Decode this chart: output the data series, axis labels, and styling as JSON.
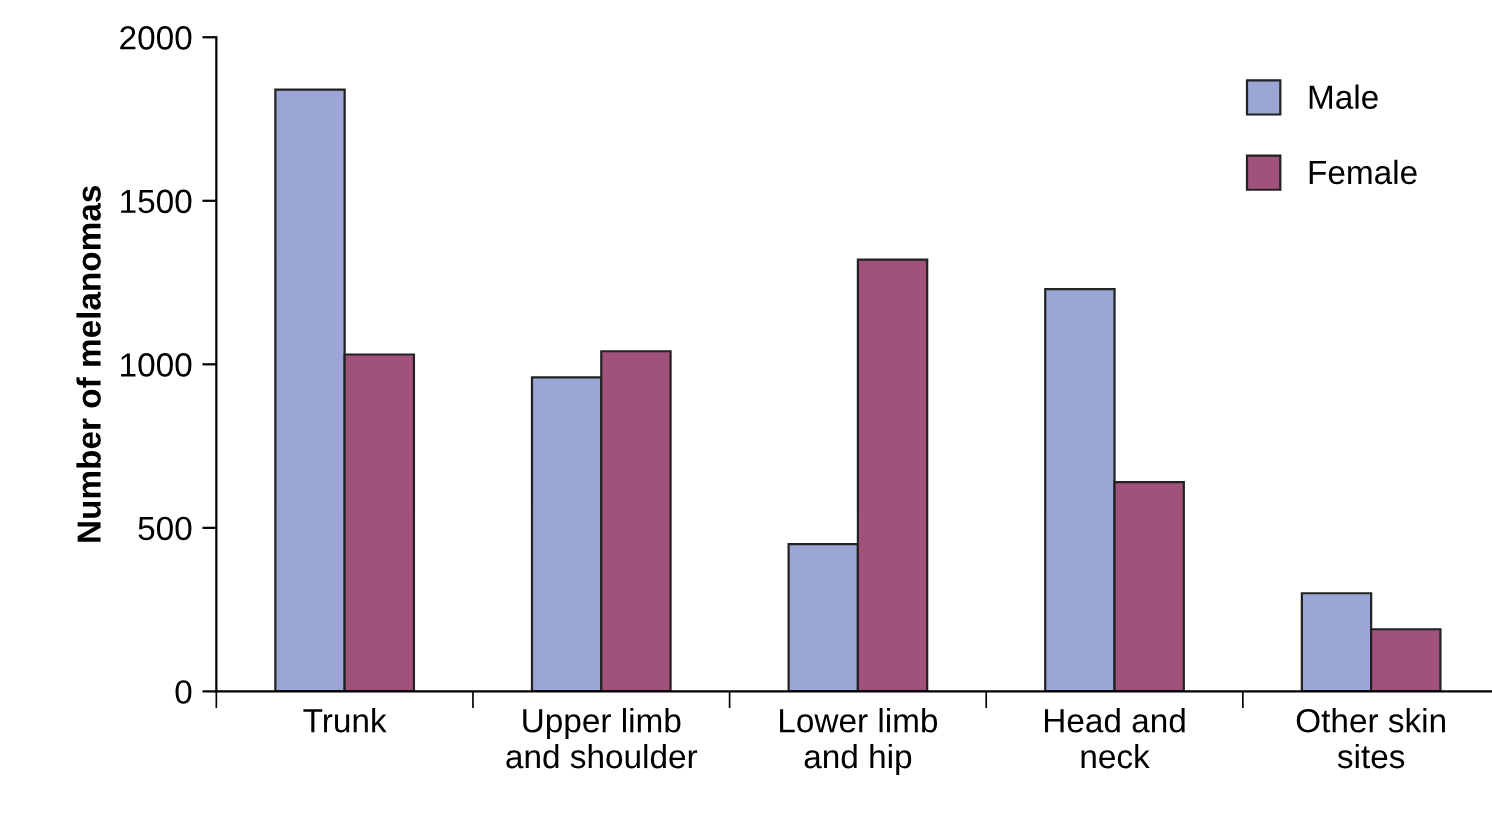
{
  "chart_data": {
    "type": "bar",
    "ylabel": "Number of melanomas",
    "categories": [
      "Trunk",
      "Upper limb\nand shoulder",
      "Lower limb\nand hip",
      "Head and\nneck",
      "Other skin\nsites"
    ],
    "series": [
      {
        "name": "Male",
        "color": "#9ba6d6",
        "values": [
          1840,
          960,
          450,
          1230,
          300
        ]
      },
      {
        "name": "Female",
        "color": "#a0527a",
        "values": [
          1030,
          1040,
          1320,
          640,
          190
        ]
      }
    ],
    "ylim": [
      0,
      2000
    ],
    "yticks": [
      0,
      500,
      1000,
      1500,
      2000
    ],
    "grid": false,
    "legend": "top right"
  }
}
